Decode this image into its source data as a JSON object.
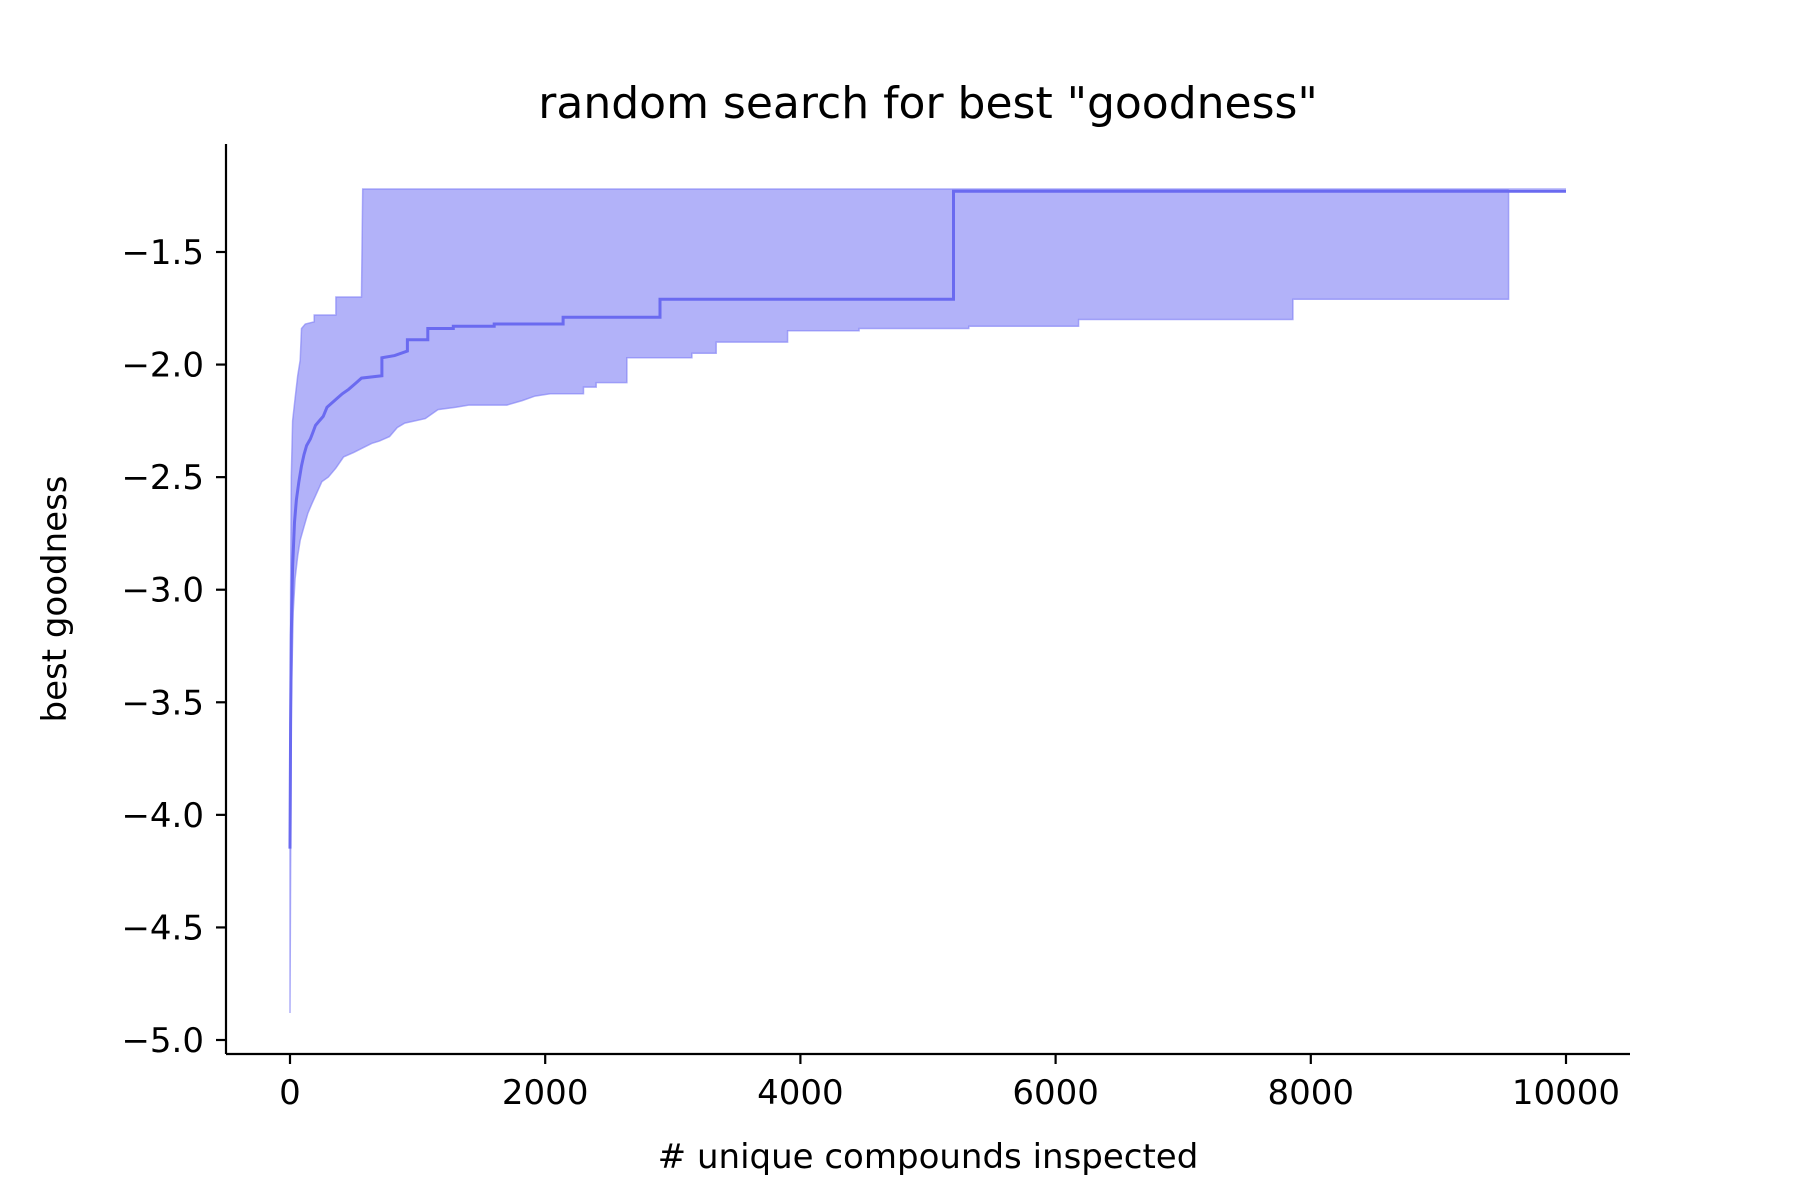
{
  "chart_data": {
    "type": "area",
    "title": "random search for best \"goodness\"",
    "xlabel": "# unique compounds inspected",
    "ylabel": "best goodness",
    "xlim": [
      -250,
      10250
    ],
    "ylim": [
      -5.05,
      -1.05
    ],
    "x_ticks": [
      0,
      2000,
      4000,
      6000,
      8000,
      10000
    ],
    "x_tick_labels": [
      "0",
      "2000",
      "4000",
      "6000",
      "8000",
      "10000"
    ],
    "y_ticks": [
      -5.0,
      -4.5,
      -4.0,
      -3.5,
      -3.0,
      -2.5,
      -2.0,
      -1.5
    ],
    "y_tick_labels": [
      "−5.0",
      "−4.5",
      "−4.0",
      "−3.5",
      "−3.0",
      "−2.5",
      "−2.0",
      "−1.5"
    ],
    "grid": false,
    "legend": "none",
    "series": [
      {
        "role": "mean",
        "color": "#6a6af0",
        "points": [
          [
            0,
            -4.15
          ],
          [
            5,
            -3.6
          ],
          [
            10,
            -3.2
          ],
          [
            20,
            -2.9
          ],
          [
            35,
            -2.7
          ],
          [
            50,
            -2.6
          ],
          [
            70,
            -2.52
          ],
          [
            90,
            -2.45
          ],
          [
            110,
            -2.4
          ],
          [
            130,
            -2.36
          ],
          [
            160,
            -2.33
          ],
          [
            180,
            -2.3
          ],
          [
            200,
            -2.27
          ],
          [
            230,
            -2.25
          ],
          [
            260,
            -2.23
          ],
          [
            290,
            -2.19
          ],
          [
            330,
            -2.17
          ],
          [
            370,
            -2.15
          ],
          [
            410,
            -2.13
          ],
          [
            460,
            -2.11
          ],
          [
            520,
            -2.08
          ],
          [
            560,
            -2.06
          ],
          [
            720,
            -2.05
          ],
          [
            720,
            -1.97
          ],
          [
            820,
            -1.96
          ],
          [
            920,
            -1.94
          ],
          [
            920,
            -1.89
          ],
          [
            1080,
            -1.89
          ],
          [
            1080,
            -1.84
          ],
          [
            1280,
            -1.84
          ],
          [
            1280,
            -1.83
          ],
          [
            1600,
            -1.83
          ],
          [
            1600,
            -1.82
          ],
          [
            2140,
            -1.82
          ],
          [
            2140,
            -1.79
          ],
          [
            2900,
            -1.79
          ],
          [
            2900,
            -1.71
          ],
          [
            5200,
            -1.71
          ],
          [
            5200,
            -1.23
          ],
          [
            10000,
            -1.23
          ]
        ]
      }
    ],
    "band": {
      "color": "#7b7bf5",
      "upper": [
        [
          0,
          -4.15
        ],
        [
          5,
          -3.0
        ],
        [
          10,
          -2.5
        ],
        [
          20,
          -2.25
        ],
        [
          40,
          -2.15
        ],
        [
          60,
          -2.05
        ],
        [
          80,
          -1.98
        ],
        [
          90,
          -1.84
        ],
        [
          120,
          -1.82
        ],
        [
          190,
          -1.81
        ],
        [
          190,
          -1.78
        ],
        [
          360,
          -1.78
        ],
        [
          360,
          -1.7
        ],
        [
          560,
          -1.7
        ],
        [
          560,
          -1.69
        ],
        [
          570,
          -1.22
        ],
        [
          10000,
          -1.22
        ]
      ],
      "lower": [
        [
          0,
          -4.88
        ],
        [
          10,
          -3.5
        ],
        [
          25,
          -3.1
        ],
        [
          40,
          -2.95
        ],
        [
          60,
          -2.85
        ],
        [
          80,
          -2.78
        ],
        [
          110,
          -2.72
        ],
        [
          140,
          -2.66
        ],
        [
          170,
          -2.62
        ],
        [
          210,
          -2.57
        ],
        [
          250,
          -2.52
        ],
        [
          300,
          -2.5
        ],
        [
          360,
          -2.46
        ],
        [
          420,
          -2.41
        ],
        [
          500,
          -2.39
        ],
        [
          570,
          -2.37
        ],
        [
          640,
          -2.35
        ],
        [
          700,
          -2.34
        ],
        [
          780,
          -2.32
        ],
        [
          840,
          -2.28
        ],
        [
          900,
          -2.26
        ],
        [
          980,
          -2.25
        ],
        [
          1060,
          -2.24
        ],
        [
          1160,
          -2.2
        ],
        [
          1300,
          -2.19
        ],
        [
          1400,
          -2.18
        ],
        [
          1700,
          -2.18
        ],
        [
          1820,
          -2.16
        ],
        [
          1920,
          -2.14
        ],
        [
          2040,
          -2.13
        ],
        [
          2300,
          -2.13
        ],
        [
          2300,
          -2.1
        ],
        [
          2400,
          -2.1
        ],
        [
          2400,
          -2.08
        ],
        [
          2640,
          -2.08
        ],
        [
          2640,
          -1.97
        ],
        [
          3150,
          -1.97
        ],
        [
          3150,
          -1.95
        ],
        [
          3340,
          -1.95
        ],
        [
          3340,
          -1.9
        ],
        [
          3900,
          -1.9
        ],
        [
          3900,
          -1.85
        ],
        [
          4460,
          -1.85
        ],
        [
          4460,
          -1.84
        ],
        [
          5320,
          -1.84
        ],
        [
          5320,
          -1.83
        ],
        [
          6180,
          -1.83
        ],
        [
          6180,
          -1.8
        ],
        [
          7860,
          -1.8
        ],
        [
          7860,
          -1.71
        ],
        [
          9550,
          -1.71
        ],
        [
          9550,
          -1.22
        ],
        [
          10000,
          -1.22
        ]
      ]
    }
  }
}
